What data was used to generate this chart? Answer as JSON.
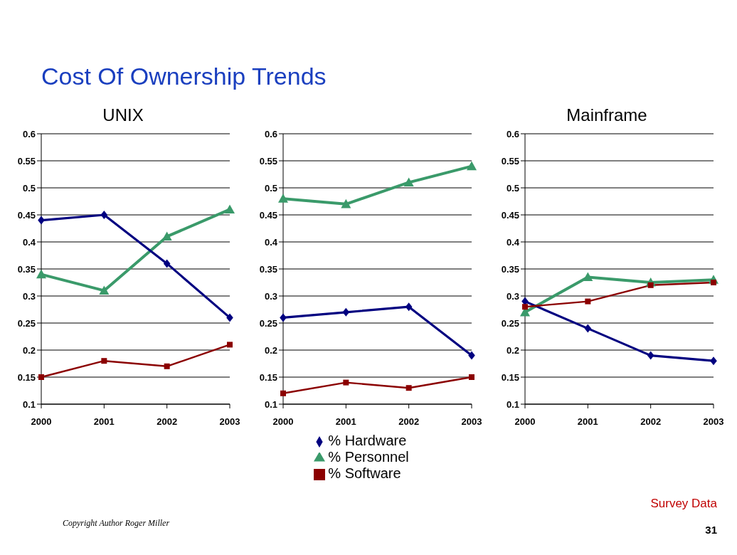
{
  "chart_data": [
    {
      "type": "line",
      "title": "Cost Of Ownership Trends",
      "subtitle": "UNIX",
      "categories": [
        "2000",
        "2001",
        "2002",
        "2003"
      ],
      "ylim": [
        0.1,
        0.6
      ],
      "yticks": [
        0.1,
        0.15,
        0.2,
        0.25,
        0.3,
        0.35,
        0.4,
        0.45,
        0.5,
        0.55,
        0.6
      ],
      "grid": "y",
      "series": [
        {
          "color": "#3a9a6a",
          "marker": "triangle",
          "values": [
            0.34,
            0.31,
            0.41,
            0.46
          ]
        },
        {
          "color": "#000080",
          "marker": "diamond",
          "values": [
            0.44,
            0.45,
            0.36,
            0.26
          ]
        },
        {
          "color": "#8b0000",
          "marker": "square",
          "values": [
            0.15,
            0.18,
            0.17,
            0.21
          ]
        }
      ]
    },
    {
      "type": "line",
      "categories": [
        "2000",
        "2001",
        "2002",
        "2003"
      ],
      "ylim": [
        0.1,
        0.6
      ],
      "yticks": [
        0.1,
        0.15,
        0.2,
        0.25,
        0.3,
        0.35,
        0.4,
        0.45,
        0.5,
        0.55,
        0.6
      ],
      "grid": "y",
      "legend": "bottom",
      "series": [
        {
          "name": "% Personnel",
          "color": "#3a9a6a",
          "marker": "triangle",
          "values": [
            0.48,
            0.47,
            0.51,
            0.54
          ]
        },
        {
          "name": "% Hardware",
          "color": "#000080",
          "marker": "diamond",
          "values": [
            0.26,
            0.27,
            0.28,
            0.19
          ]
        },
        {
          "name": "% Software",
          "color": "#8b0000",
          "marker": "square",
          "values": [
            0.12,
            0.14,
            0.13,
            0.15
          ]
        }
      ]
    },
    {
      "type": "line",
      "subtitle": "Mainframe",
      "categories": [
        "2000",
        "2001",
        "2002",
        "2003"
      ],
      "ylim": [
        0.1,
        0.6
      ],
      "yticks": [
        0.1,
        0.15,
        0.2,
        0.25,
        0.3,
        0.35,
        0.4,
        0.45,
        0.5,
        0.55,
        0.6
      ],
      "grid": "y",
      "annotations": [
        "Survey Data",
        "Copyright Author Roger Miller",
        "31"
      ],
      "series": [
        {
          "color": "#3a9a6a",
          "marker": "triangle",
          "values": [
            0.27,
            0.335,
            0.325,
            0.33
          ]
        },
        {
          "color": "#000080",
          "marker": "diamond",
          "values": [
            0.29,
            0.24,
            0.19,
            0.18
          ]
        },
        {
          "color": "#8b0000",
          "marker": "square",
          "values": [
            0.28,
            0.29,
            0.32,
            0.325
          ]
        }
      ]
    }
  ]
}
